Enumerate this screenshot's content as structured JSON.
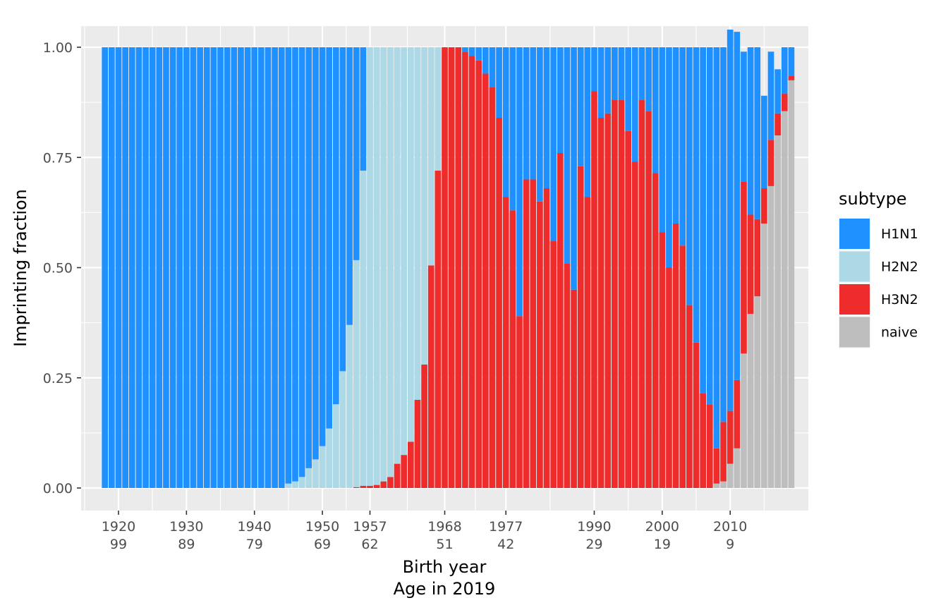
{
  "chart_data": {
    "type": "bar",
    "stacked": true,
    "xlabel_lines": [
      "Birth year",
      "Age in 2019"
    ],
    "ylabel": "Imprinting fraction",
    "ylim": [
      0,
      1
    ],
    "xlim": [
      1914.5,
      2021.5
    ],
    "y_ticks": [
      0,
      0.25,
      0.5,
      0.75,
      1
    ],
    "y_tick_labels": [
      "0.00",
      "0.25",
      "0.50",
      "0.75",
      "1.00"
    ],
    "x_major_breaks": [
      1920,
      1930,
      1940,
      1950,
      1957,
      1968,
      1977,
      1990,
      2000,
      2010
    ],
    "x_tick_labels": [
      {
        "year": "1920",
        "age": "99"
      },
      {
        "year": "1930",
        "age": "89"
      },
      {
        "year": "1940",
        "age": "79"
      },
      {
        "year": "1950",
        "age": "69"
      },
      {
        "year": "1957",
        "age": "62"
      },
      {
        "year": "1968",
        "age": "51"
      },
      {
        "year": "1977",
        "age": "42"
      },
      {
        "year": "1990",
        "age": "29"
      },
      {
        "year": "2000",
        "age": "19"
      },
      {
        "year": "2010",
        "age": "9"
      }
    ],
    "x_minor_breaks": [
      1915,
      1925,
      1935,
      1945,
      1953.5,
      1962.5,
      1972.5,
      1983.5,
      1995,
      2005,
      2015
    ],
    "grid": true,
    "legend": {
      "title": "subtype",
      "position": "right",
      "entries": [
        {
          "label": "H1N1",
          "color": "#1E90FF"
        },
        {
          "label": "H2N2",
          "color": "#ADD8E6"
        },
        {
          "label": "H3N2",
          "color": "#EE2C2C"
        },
        {
          "label": "naive",
          "color": "#BEBEBE"
        }
      ]
    },
    "colors": {
      "H1N1": "#1E90FF",
      "H2N2": "#ADD8E6",
      "H3N2": "#EE2C2C",
      "naive": "#BEBEBE",
      "panel": "#EBEBEB",
      "grid": "#FFFFFF"
    },
    "stack_order": [
      "naive",
      "H3N2",
      "H2N2",
      "H1N1"
    ],
    "x": [
      1918,
      1919,
      1920,
      1921,
      1922,
      1923,
      1924,
      1925,
      1926,
      1927,
      1928,
      1929,
      1930,
      1931,
      1932,
      1933,
      1934,
      1935,
      1936,
      1937,
      1938,
      1939,
      1940,
      1941,
      1942,
      1943,
      1944,
      1945,
      1946,
      1947,
      1948,
      1949,
      1950,
      1951,
      1952,
      1953,
      1954,
      1955,
      1956,
      1957,
      1958,
      1959,
      1960,
      1961,
      1962,
      1963,
      1964,
      1965,
      1966,
      1967,
      1968,
      1969,
      1970,
      1971,
      1972,
      1973,
      1974,
      1975,
      1976,
      1977,
      1978,
      1979,
      1980,
      1981,
      1982,
      1983,
      1984,
      1985,
      1986,
      1987,
      1988,
      1989,
      1990,
      1991,
      1992,
      1993,
      1994,
      1995,
      1996,
      1997,
      1998,
      1999,
      2000,
      2001,
      2002,
      2003,
      2004,
      2005,
      2006,
      2007,
      2008,
      2009,
      2010,
      2011,
      2012,
      2013,
      2014,
      2015,
      2016,
      2017,
      2018,
      2019
    ],
    "series": [
      {
        "name": "H1N1",
        "values": [
          1,
          1,
          1,
          1,
          1,
          1,
          1,
          1,
          1,
          1,
          1,
          1,
          1,
          1,
          1,
          1,
          1,
          1,
          1,
          1,
          1,
          1,
          1,
          1,
          1,
          1,
          1,
          0.99,
          0.985,
          0.975,
          0.955,
          0.935,
          0.905,
          0.865,
          0.81,
          0.735,
          0.63,
          0.483,
          0.28,
          0,
          0,
          0,
          0,
          0,
          0,
          0,
          0,
          0,
          0,
          0,
          0,
          0,
          0,
          0.01,
          0.02,
          0.03,
          0.06,
          0.09,
          0.16,
          0.34,
          0.37,
          0.61,
          0.3,
          0.3,
          0.35,
          0.32,
          0.44,
          0.24,
          0.49,
          0.55,
          0.27,
          0.34,
          0.1,
          0.16,
          0.15,
          0.12,
          0.12,
          0.19,
          0.26,
          0.12,
          0.145,
          0.285,
          0.42,
          0.5,
          0.4,
          0.45,
          0.585,
          0.67,
          0.785,
          0.81,
          0.91,
          0.85,
          0.865,
          0.79,
          0.295,
          0.38,
          0.39,
          0.21,
          0.2,
          0.1,
          0.105,
          0.065
        ]
      },
      {
        "name": "H2N2",
        "values": [
          0,
          0,
          0,
          0,
          0,
          0,
          0,
          0,
          0,
          0,
          0,
          0,
          0,
          0,
          0,
          0,
          0,
          0,
          0,
          0,
          0,
          0,
          0,
          0,
          0,
          0,
          0,
          0.01,
          0.015,
          0.025,
          0.045,
          0.065,
          0.095,
          0.135,
          0.19,
          0.265,
          0.37,
          0.515,
          0.715,
          0.995,
          0.993,
          0.985,
          0.975,
          0.945,
          0.925,
          0.895,
          0.8,
          0.72,
          0.495,
          0.28,
          0,
          0,
          0,
          0,
          0,
          0,
          0,
          0,
          0,
          0,
          0,
          0,
          0,
          0,
          0,
          0,
          0,
          0,
          0,
          0,
          0,
          0,
          0,
          0,
          0,
          0,
          0,
          0,
          0,
          0,
          0,
          0,
          0,
          0,
          0,
          0,
          0,
          0,
          0,
          0,
          0,
          0,
          0,
          0,
          0,
          0,
          0,
          0,
          0,
          0,
          0,
          0
        ]
      },
      {
        "name": "H3N2",
        "values": [
          0,
          0,
          0,
          0,
          0,
          0,
          0,
          0,
          0,
          0,
          0,
          0,
          0,
          0,
          0,
          0,
          0,
          0,
          0,
          0,
          0,
          0,
          0,
          0,
          0,
          0,
          0,
          0,
          0,
          0,
          0,
          0,
          0,
          0,
          0,
          0,
          0,
          0.002,
          0.005,
          0.005,
          0.007,
          0.015,
          0.025,
          0.055,
          0.075,
          0.105,
          0.2,
          0.28,
          0.505,
          0.72,
          1,
          1,
          1,
          0.99,
          0.98,
          0.97,
          0.94,
          0.91,
          0.84,
          0.66,
          0.63,
          0.39,
          0.7,
          0.7,
          0.65,
          0.68,
          0.56,
          0.76,
          0.51,
          0.45,
          0.73,
          0.66,
          0.9,
          0.84,
          0.85,
          0.88,
          0.88,
          0.81,
          0.74,
          0.88,
          0.855,
          0.715,
          0.58,
          0.5,
          0.6,
          0.55,
          0.415,
          0.33,
          0.215,
          0.19,
          0.08,
          0.135,
          0.12,
          0.155,
          0.39,
          0.225,
          0.175,
          0.08,
          0.105,
          0.05,
          0.04,
          0.01
        ]
      },
      {
        "name": "naive",
        "values": [
          0,
          0,
          0,
          0,
          0,
          0,
          0,
          0,
          0,
          0,
          0,
          0,
          0,
          0,
          0,
          0,
          0,
          0,
          0,
          0,
          0,
          0,
          0,
          0,
          0,
          0,
          0,
          0,
          0,
          0,
          0,
          0,
          0,
          0,
          0,
          0,
          0,
          0,
          0,
          0,
          0,
          0,
          0,
          0,
          0,
          0,
          0,
          0,
          0,
          0,
          0,
          0,
          0,
          0,
          0,
          0,
          0,
          0,
          0,
          0,
          0,
          0,
          0,
          0,
          0,
          0,
          0,
          0,
          0,
          0,
          0,
          0,
          0,
          0,
          0,
          0,
          0,
          0,
          0,
          0,
          0,
          0,
          0,
          0,
          0,
          0,
          0,
          0,
          0,
          0,
          0.01,
          0.015,
          0.055,
          0.09,
          0.305,
          0.395,
          0.435,
          0.6,
          0.685,
          0.8,
          0.855,
          0.925
        ]
      }
    ]
  }
}
